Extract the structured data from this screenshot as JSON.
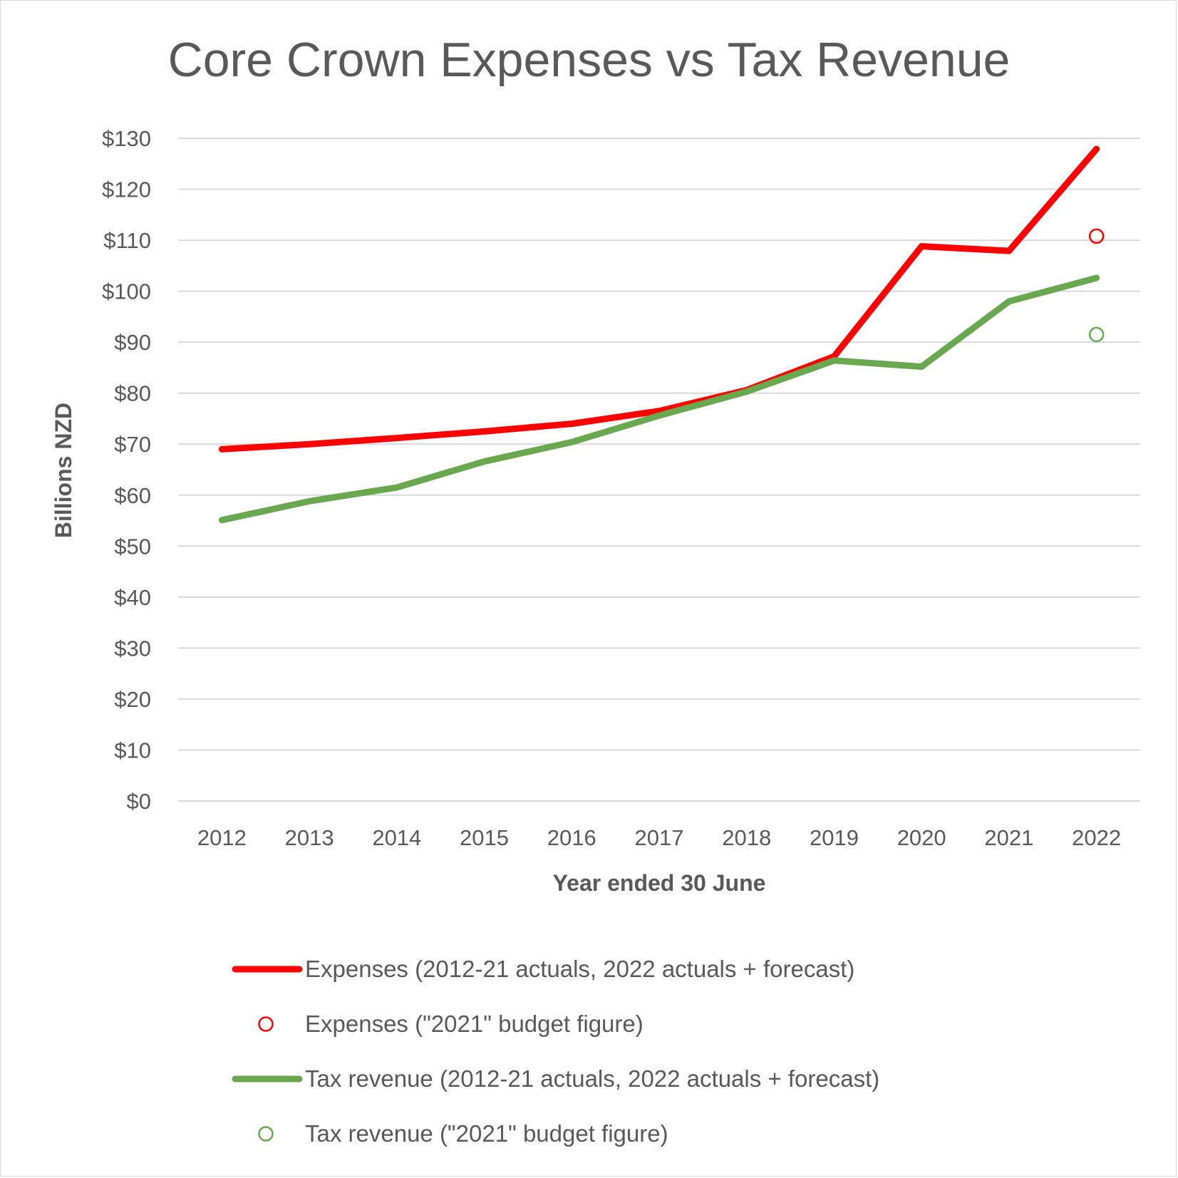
{
  "chart_data": {
    "type": "line",
    "title": "Core Crown Expenses vs Tax Revenue",
    "xlabel": "Year ended 30 June",
    "ylabel": "Billions NZD",
    "categories": [
      "2012",
      "2013",
      "2014",
      "2015",
      "2016",
      "2017",
      "2018",
      "2019",
      "2020",
      "2021",
      "2022"
    ],
    "ylim": [
      0,
      130
    ],
    "yticks": [
      0,
      10,
      20,
      30,
      40,
      50,
      60,
      70,
      80,
      90,
      100,
      110,
      120,
      130
    ],
    "ytick_labels": [
      "$0",
      "$10",
      "$20",
      "$30",
      "$40",
      "$50",
      "$60",
      "$70",
      "$80",
      "$90",
      "$100",
      "$110",
      "$120",
      "$130"
    ],
    "grid": true,
    "legend_position": "bottom",
    "series": [
      {
        "name": "Expenses (2012-21 actuals, 2022 actuals + forecast)",
        "kind": "line",
        "color": "#ff0000",
        "values": [
          69.0,
          70.0,
          71.2,
          72.5,
          74.0,
          76.5,
          80.6,
          87.2,
          108.8,
          107.9,
          127.9
        ]
      },
      {
        "name": "Expenses (\"2021\" budget figure)",
        "kind": "marker",
        "color": "#ff0000",
        "points": [
          {
            "x": "2022",
            "y": 110.8
          }
        ]
      },
      {
        "name": "Tax revenue (2012-21 actuals, 2022 actuals + forecast)",
        "kind": "line",
        "color": "#6aa84f",
        "values": [
          55.1,
          58.8,
          61.5,
          66.6,
          70.4,
          75.6,
          80.3,
          86.4,
          85.2,
          98.0,
          102.6
        ]
      },
      {
        "name": "Tax revenue (\"2021\" budget figure)",
        "kind": "marker",
        "color": "#6aa84f",
        "points": [
          {
            "x": "2022",
            "y": 91.5
          }
        ]
      }
    ]
  }
}
